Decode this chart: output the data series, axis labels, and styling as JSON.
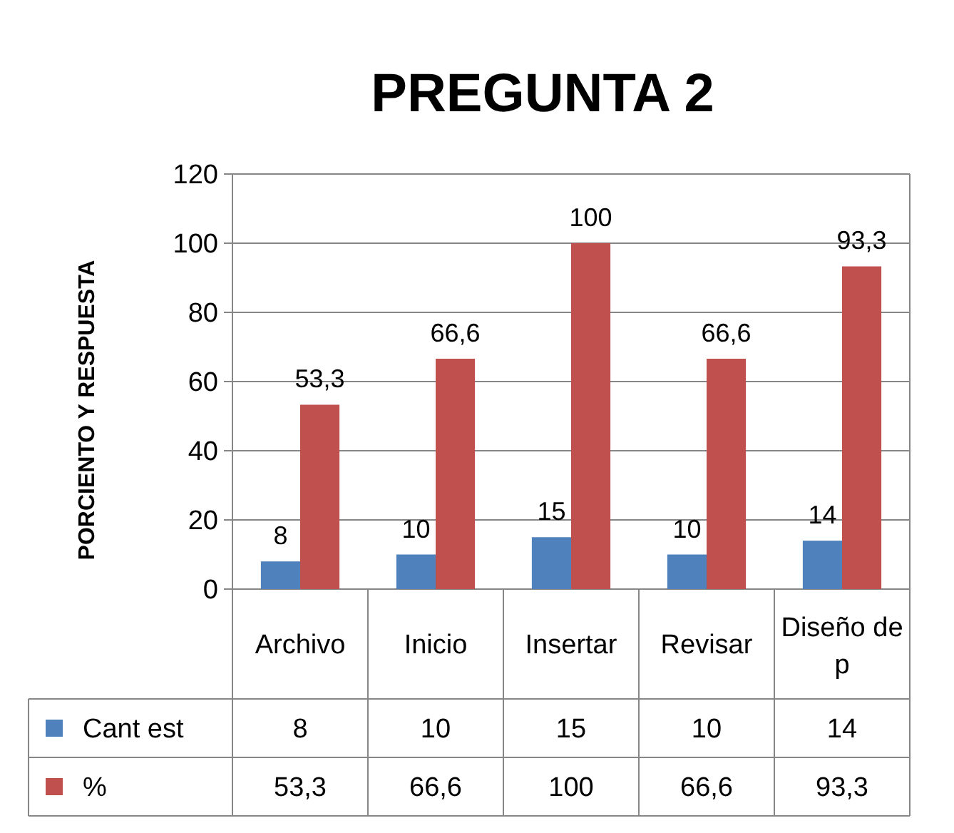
{
  "chart_data": {
    "type": "bar",
    "title": "PREGUNTA 2",
    "ylabel": "PORCIENTO Y RESPUESTA",
    "categories": [
      "Archivo",
      "Inicio",
      "Insertar",
      "Revisar",
      "Diseño de p"
    ],
    "series": [
      {
        "name": "Cant est",
        "color": "#4f81bd",
        "values": [
          8,
          10,
          15,
          10,
          14
        ],
        "value_labels": [
          "8",
          "10",
          "15",
          "10",
          "14"
        ]
      },
      {
        "name": "%",
        "color": "#c0504d",
        "values": [
          53.3,
          66.6,
          100,
          66.6,
          93.3
        ],
        "value_labels": [
          "53,3",
          "66,6",
          "100",
          "66,6",
          "93,3"
        ]
      }
    ],
    "ylim": [
      0,
      120
    ],
    "yticks": [
      0,
      20,
      40,
      60,
      80,
      100,
      120
    ],
    "grid": "y",
    "legend": "bottom"
  }
}
